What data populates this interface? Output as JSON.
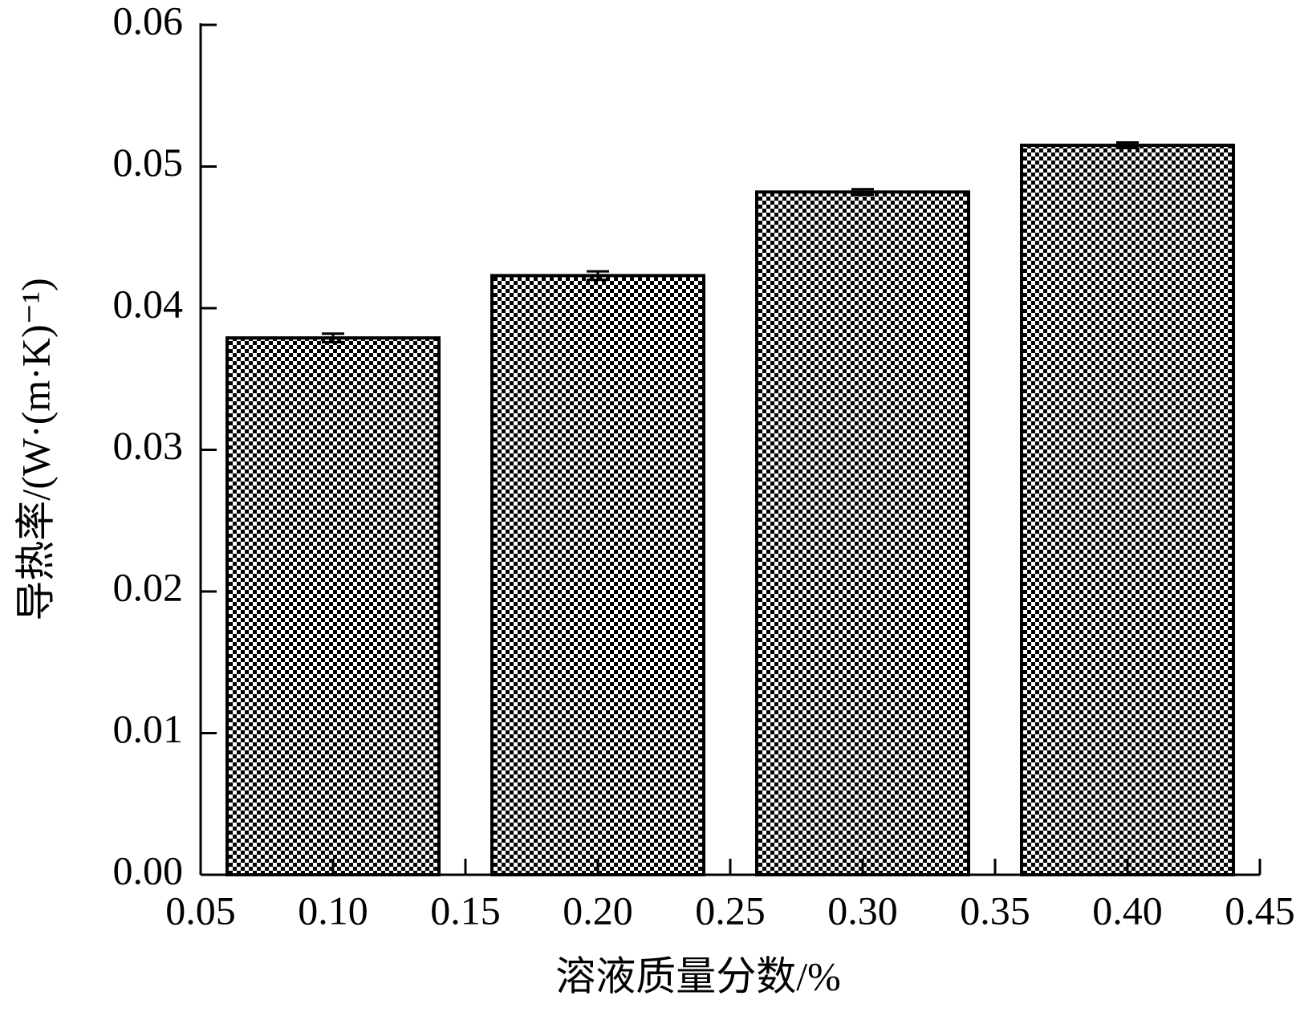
{
  "chart_data": {
    "type": "bar",
    "x_label": "溶液质量分数/%",
    "y_label": "导热率/(W·(m·K)⁻¹)",
    "x": [
      0.1,
      0.2,
      0.3,
      0.4
    ],
    "values": [
      0.0379,
      0.0423,
      0.0482,
      0.0515
    ],
    "errors": [
      0.0003,
      0.0003,
      0.0002,
      0.0002
    ],
    "color": "#000000",
    "xlim": [
      0.05,
      0.45
    ],
    "xticks": [
      0.05,
      {
        "value": 0.1,
        "label": "0.10"
      },
      0.15,
      {
        "value": 0.2,
        "label": "0.20"
      },
      0.25,
      {
        "value": 0.3,
        "label": "0.30"
      },
      0.35,
      {
        "value": 0.4,
        "label": "0.40"
      },
      0.45
    ],
    "ylim": [
      0,
      0.06
    ],
    "yticks": [
      {
        "value": 0,
        "label": "0.00"
      },
      0.01,
      0.02,
      0.03,
      0.04,
      0.05,
      0.06
    ],
    "grid": false
  }
}
